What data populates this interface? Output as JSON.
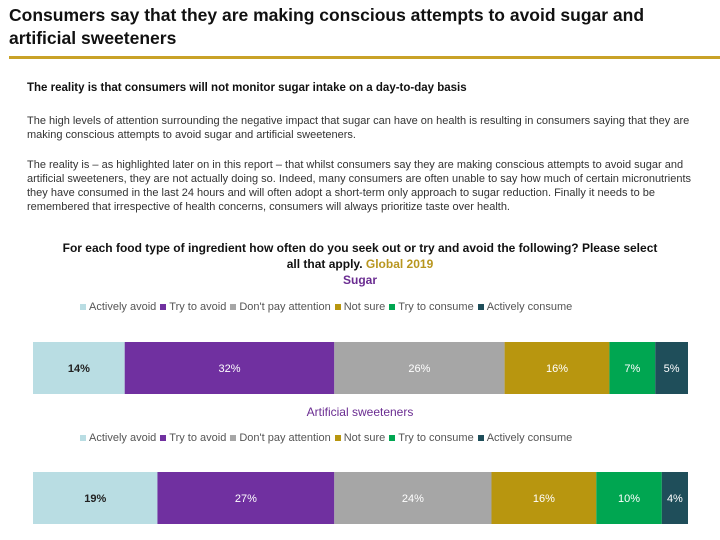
{
  "header": {
    "title": "Consumers say that they are making conscious attempts to avoid sugar and artificial sweeteners",
    "subtitle": "The reality is that consumers will not monitor sugar intake on a day-to-day basis"
  },
  "body": {
    "paragraph1": "The high levels of attention surrounding the negative impact that sugar can have on health is resulting in consumers saying that they are making conscious attempts to avoid sugar and artificial sweeteners.",
    "paragraph2": "The reality is – as highlighted later on in this report – that whilst consumers say they are making conscious attempts to avoid sugar and artificial sweeteners, they are not actually doing so. Indeed, many consumers are often unable to say how much of certain micronutrients they have consumed in the last 24 hours and will often adopt a short-term only approach to sugar reduction. Finally it needs to be remembered that irrespective of health concerns, consumers will always prioritize taste over health."
  },
  "question": {
    "text": "For each food type of ingredient how often do you seek out or try and avoid the following? Please select all that apply.",
    "year_label": "Global 2019"
  },
  "colors": {
    "actively_avoid": "#b9dde3",
    "try_to_avoid": "#7030a0",
    "dont_pay_attention": "#a6a6a6",
    "not_sure": "#b8960f",
    "try_to_consume": "#00a651",
    "actively_consume": "#1f4e5a",
    "title_rule": "#c9a227",
    "chart_title": "#6a2c91"
  },
  "chart_data": [
    {
      "type": "bar",
      "orientation": "horizontal-stacked-100",
      "title": "Sugar",
      "categories": [
        "Actively avoid",
        "Try to avoid",
        "Don't pay attention",
        "Not sure",
        "Try to consume",
        "Actively consume"
      ],
      "values": [
        14,
        32,
        26,
        16,
        7,
        5
      ],
      "labels": [
        "14%",
        "32%",
        "26%",
        "16%",
        "7%",
        "5%"
      ],
      "legend_position": "top"
    },
    {
      "type": "bar",
      "orientation": "horizontal-stacked-100",
      "title": "Artificial sweeteners",
      "categories": [
        "Actively avoid",
        "Try to avoid",
        "Don't pay attention",
        "Not sure",
        "Try to consume",
        "Actively consume"
      ],
      "values": [
        19,
        27,
        24,
        16,
        10,
        4
      ],
      "labels": [
        "19%",
        "27%",
        "24%",
        "16%",
        "10%",
        "4%"
      ],
      "legend_position": "top"
    }
  ]
}
